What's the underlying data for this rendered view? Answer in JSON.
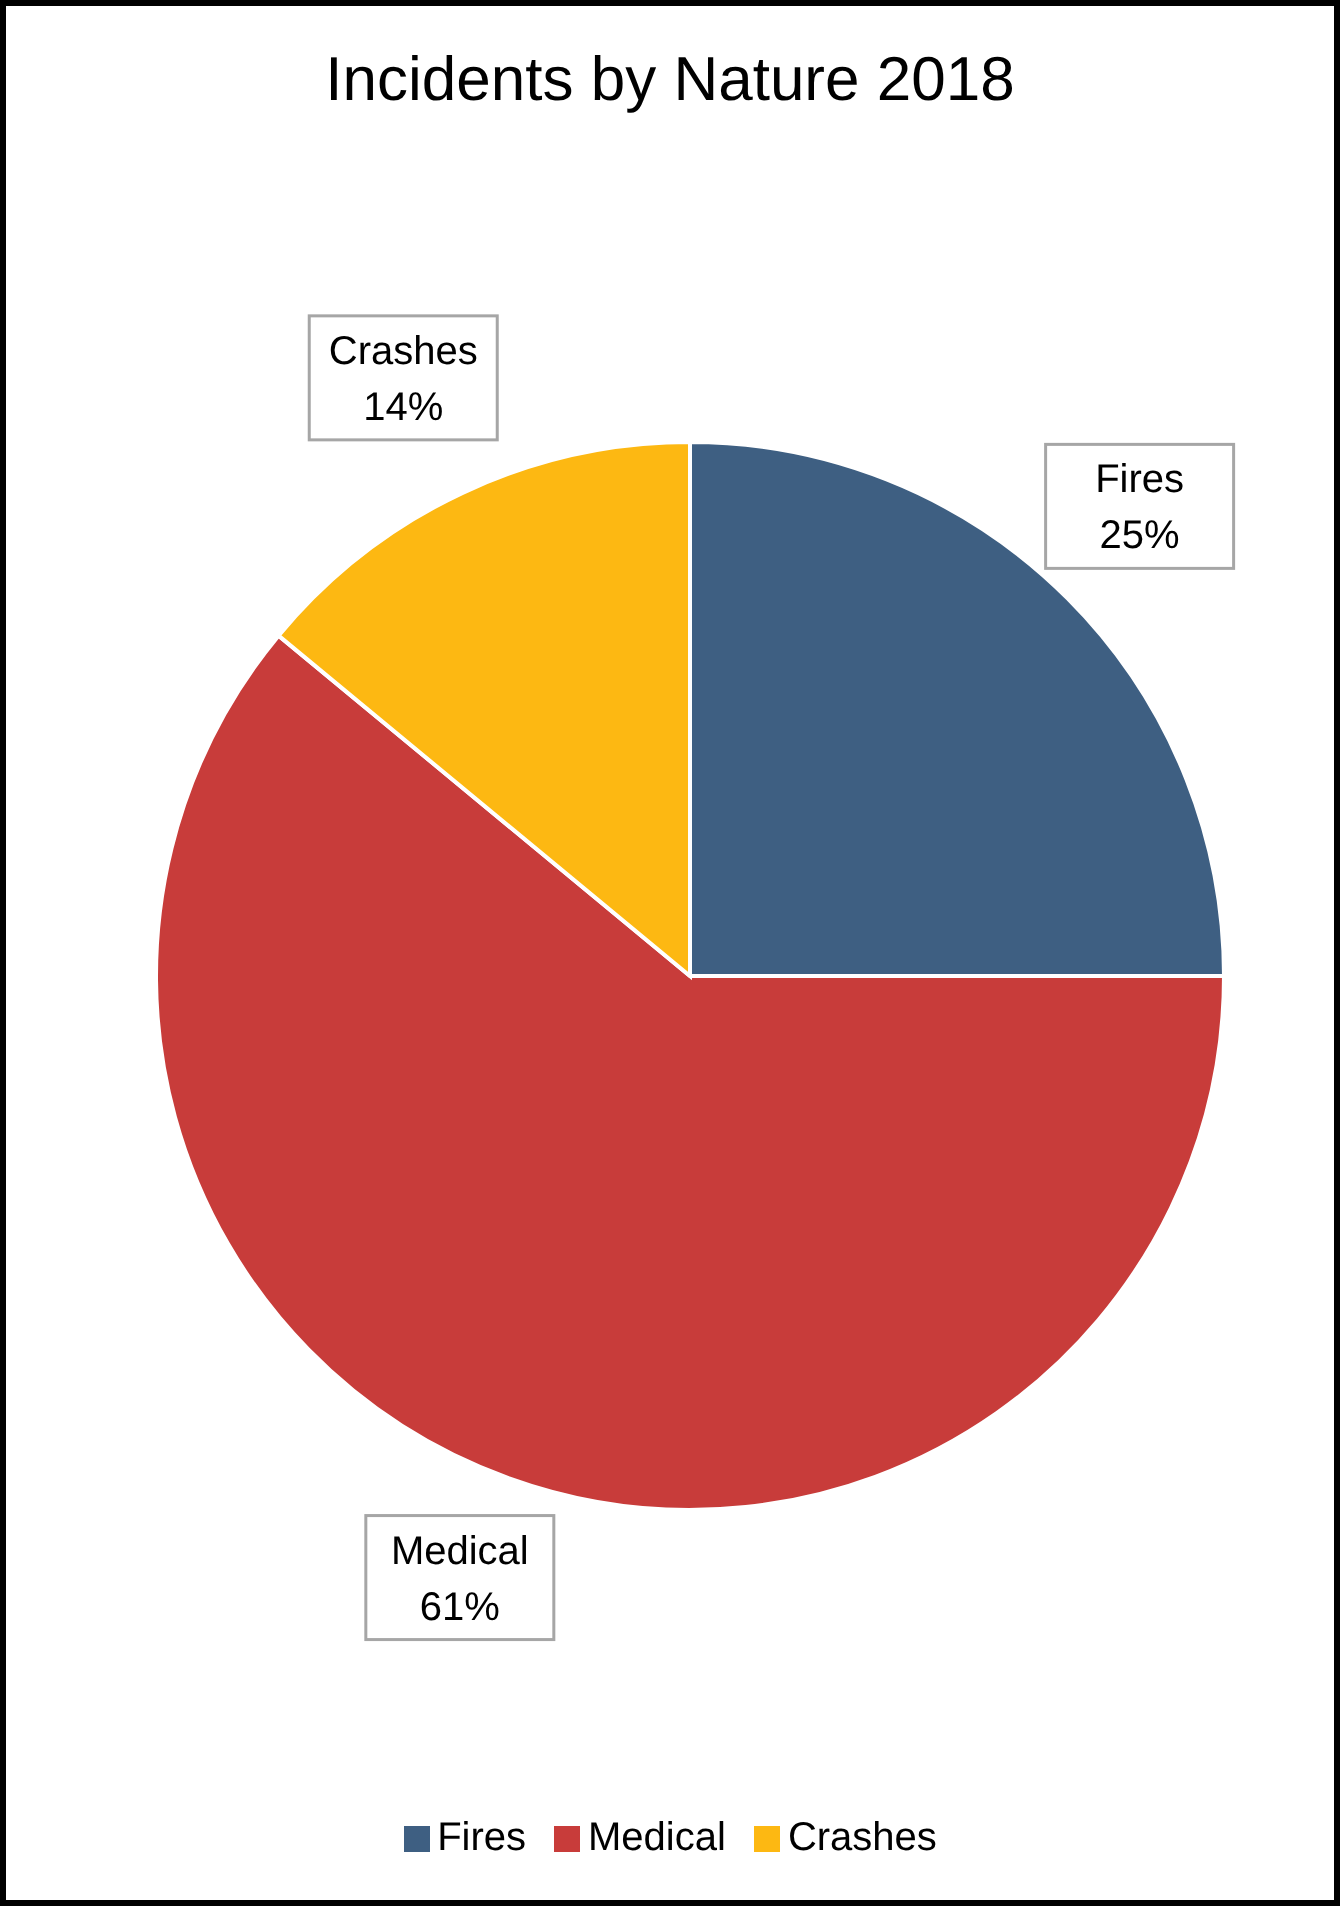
{
  "chart_data": {
    "type": "pie",
    "title": "Incidents by Nature 2018",
    "categories": [
      "Fires",
      "Medical",
      "Crashes"
    ],
    "values": [
      25,
      61,
      14
    ],
    "colors": [
      "#3e5f82",
      "#c83c3a",
      "#fdb812"
    ],
    "value_labels": [
      "25%",
      "61%",
      "14%"
    ],
    "legend": "bottom"
  }
}
